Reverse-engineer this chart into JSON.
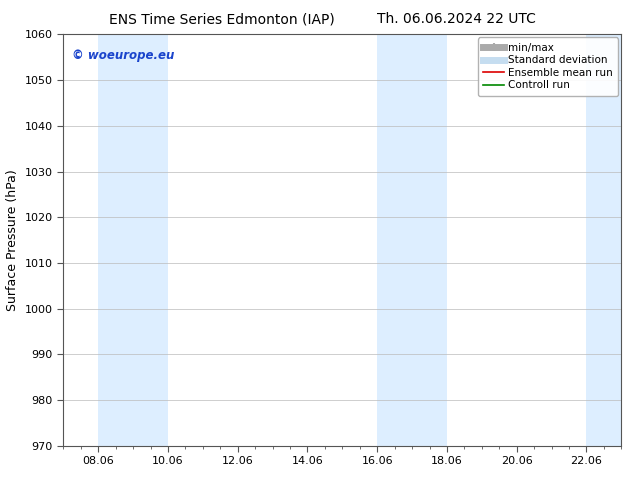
{
  "title_left": "ENS Time Series Edmonton (IAP)",
  "title_right": "Th. 06.06.2024 22 UTC",
  "ylabel": "Surface Pressure (hPa)",
  "ylim": [
    970,
    1060
  ],
  "yticks": [
    970,
    980,
    990,
    1000,
    1010,
    1020,
    1030,
    1040,
    1050,
    1060
  ],
  "xtick_labels": [
    "08.06",
    "10.06",
    "12.06",
    "14.06",
    "16.06",
    "18.06",
    "20.06",
    "22.06"
  ],
  "xtick_positions": [
    1,
    3,
    5,
    7,
    9,
    11,
    13,
    15
  ],
  "xlim": [
    0,
    16
  ],
  "shaded_bands": [
    {
      "x_start": 1,
      "x_end": 3
    },
    {
      "x_start": 9,
      "x_end": 11
    },
    {
      "x_start": 15,
      "x_end": 16
    }
  ],
  "shaded_color": "#ddeeff",
  "watermark_text": "© woeurope.eu",
  "watermark_color": "#1a44cc",
  "legend_items": [
    {
      "label": "min/max",
      "color": "#aaaaaa",
      "lw": 5
    },
    {
      "label": "Standard deviation",
      "color": "#c5ddf0",
      "lw": 5
    },
    {
      "label": "Ensemble mean run",
      "color": "#dd0000",
      "lw": 1.2
    },
    {
      "label": "Controll run",
      "color": "#008800",
      "lw": 1.2
    }
  ],
  "background_color": "#ffffff",
  "spine_color": "#555555",
  "tick_color": "#555555",
  "grid_color": "#bbbbbb",
  "title_fontsize": 10,
  "axis_fontsize": 8,
  "ylabel_fontsize": 9
}
